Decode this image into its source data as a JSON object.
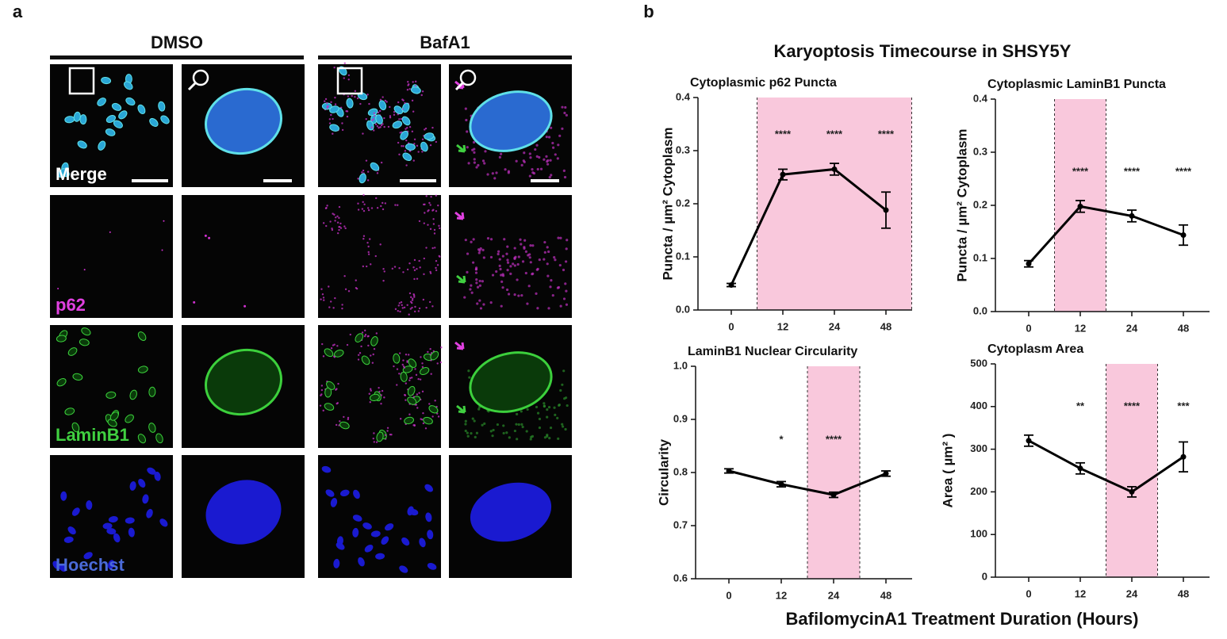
{
  "panel_a": {
    "label": "a",
    "columns": [
      "DMSO",
      "BafA1"
    ],
    "rows": [
      "Merge",
      "p62",
      "LaminB1",
      "Hoechst"
    ]
  },
  "panel_b": {
    "label": "b",
    "title": "Karyoptosis Timecourse in SHSY5Y",
    "xlabel": "BafilomycinA1 Treatment Duration (Hours)"
  },
  "chart_data": [
    {
      "type": "line",
      "title": "Cytoplasmic p62 Puncta",
      "ylabel": "Puncta / µm² Cytoplasm",
      "categories": [
        "0",
        "12",
        "24",
        "48"
      ],
      "values": [
        0.047,
        0.255,
        0.265,
        0.188
      ],
      "errors": [
        0.003,
        0.01,
        0.011,
        0.034
      ],
      "annotations": [
        null,
        "****",
        "****",
        "****"
      ],
      "shaded_categories": [
        "12",
        "24",
        "48"
      ],
      "color": "#000000",
      "shade_color": "#f9c8dc",
      "ylim": [
        0,
        0.4
      ],
      "yticks": [
        {
          "value": 0,
          "label": "0.0"
        },
        0.1,
        0.2,
        0.3,
        0.4
      ]
    },
    {
      "type": "line",
      "title": "Cytoplasmic LaminB1 Puncta",
      "ylabel": "Puncta / µm² Cytoplasm",
      "categories": [
        "0",
        "12",
        "24",
        "48"
      ],
      "values": [
        0.09,
        0.198,
        0.18,
        0.144
      ],
      "errors": [
        0.006,
        0.011,
        0.011,
        0.019
      ],
      "annotations": [
        null,
        "****",
        "****",
        "****"
      ],
      "shaded_categories": [
        "12"
      ],
      "color": "#000000",
      "shade_color": "#f9c8dc",
      "ylim": [
        0,
        0.4
      ],
      "yticks": [
        {
          "value": 0,
          "label": "0.0"
        },
        0.1,
        0.2,
        0.3,
        0.4
      ]
    },
    {
      "type": "line",
      "title": "LaminB1 Nuclear Circularity",
      "ylabel": "Circularity",
      "categories": [
        "0",
        "12",
        "24",
        "48"
      ],
      "values": [
        0.803,
        0.778,
        0.758,
        0.798
      ],
      "errors": [
        0.004,
        0.005,
        0.005,
        0.005
      ],
      "annotations": [
        null,
        "*",
        "****",
        null
      ],
      "shaded_categories": [
        "24"
      ],
      "color": "#000000",
      "shade_color": "#f9c8dc",
      "ylim": [
        0.6,
        1.0
      ],
      "yticks": [
        0.6,
        0.7,
        0.8,
        0.9,
        {
          "value": 1.0,
          "label": "1.0"
        }
      ]
    },
    {
      "type": "line",
      "title": "Cytoplasm Area",
      "ylabel": "Area ( µm² )",
      "categories": [
        "0",
        "12",
        "24",
        "48"
      ],
      "values": [
        320,
        255,
        200,
        282
      ],
      "errors": [
        13,
        13,
        12,
        35
      ],
      "annotations": [
        null,
        "**",
        "****",
        "***"
      ],
      "shaded_categories": [
        "24"
      ],
      "color": "#000000",
      "shade_color": "#f9c8dc",
      "ylim": [
        0,
        500
      ],
      "yticks": [
        0,
        100,
        200,
        300,
        400,
        500
      ]
    }
  ]
}
